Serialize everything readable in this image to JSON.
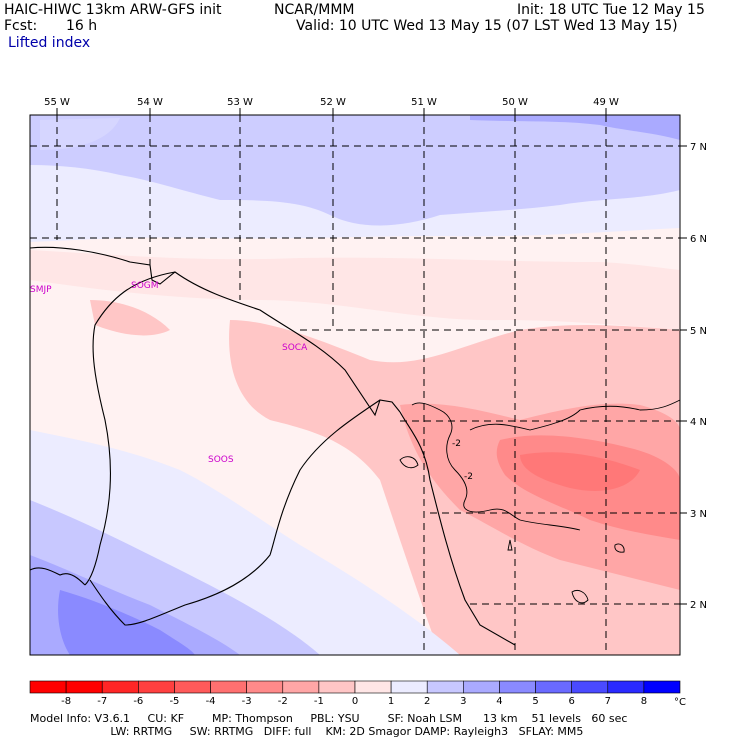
{
  "header": {
    "model_line": "HAIC-HIWC 13km ARW-GFS init",
    "org": "NCAR/MMM",
    "init_line": "Init: 18 UTC Tue 12 May 15",
    "fcst_label": "Fcst:",
    "fcst_value": "16 h",
    "valid_line": "Valid: 10 UTC Wed 13 May 15 (07 LST Wed 13 May 15)",
    "field_name": "Lifted index"
  },
  "map": {
    "lon_labels": [
      "55 W",
      "54 W",
      "53 W",
      "52 W",
      "51 W",
      "50 W",
      "49 W"
    ],
    "lat_labels": [
      "7 N",
      "6 N",
      "5 N",
      "4 N",
      "3 N",
      "2 N"
    ],
    "stations": [
      "SMJP",
      "SOGM",
      "SOCA",
      "SOOS"
    ],
    "contour_labels": [
      "-2",
      "-2"
    ]
  },
  "colorbar": {
    "ticks": [
      "-8",
      "-7",
      "-6",
      "-5",
      "-4",
      "-3",
      "-2",
      "-1",
      "0",
      "1",
      "2",
      "3",
      "4",
      "5",
      "6",
      "7",
      "8"
    ],
    "unit": "°C",
    "colors": [
      "#ff0000",
      "#ff2626",
      "#ff4040",
      "#ff5a5a",
      "#ff7070",
      "#ff8a8a",
      "#ffa6a6",
      "#ffc6c6",
      "#ffe6e6",
      "#ececff",
      "#c8c8ff",
      "#aaaaff",
      "#8a8aff",
      "#6a6aff",
      "#4a4aff",
      "#2a2aff",
      "#0000ff"
    ]
  },
  "footer": {
    "line1": "Model Info: V3.6.1     CU: KF        MP: Thompson     PBL: YSU        SF: Noah LSM      13 km    51 levels   60 sec",
    "line2": "                       LW: RRTMG     SW: RRTMG   DIFF: full    KM: 2D Smagor DAMP: Rayleigh3   SFLAY: MM5"
  }
}
